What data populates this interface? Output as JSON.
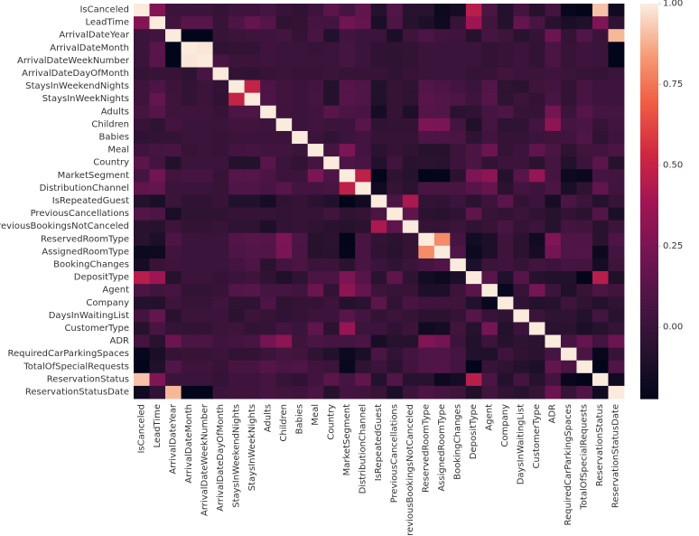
{
  "chart_data": {
    "type": "heatmap",
    "labels": [
      "IsCanceled",
      "LeadTime",
      "ArrivalDateYear",
      "ArrivalDateMonth",
      "ArrivalDateWeekNumber",
      "ArrivalDateDayOfMonth",
      "StaysInWeekendNights",
      "StaysInWeekNights",
      "Adults",
      "Children",
      "Babies",
      "Meal",
      "Country",
      "MarketSegment",
      "DistributionChannel",
      "IsRepeatedGuest",
      "PreviousCancellations",
      "PreviousBookingsNotCanceled",
      "ReservedRoomType",
      "AssignedRoomType",
      "BookingChanges",
      "DepositType",
      "Agent",
      "Company",
      "DaysInWaitingList",
      "CustomerType",
      "ADR",
      "RequiredCarParkingSpaces",
      "TotalOfSpecialRequests",
      "ReservationStatus",
      "ReservationStatusDate"
    ],
    "colorbar": {
      "vmin": -0.22,
      "vmax": 1.0,
      "ticks": [
        1.0,
        0.75,
        0.5,
        0.25,
        0.0
      ],
      "tick_labels": [
        "1.00",
        "0.75",
        "0.50",
        "0.25",
        "0.00"
      ]
    },
    "base_values": [
      [
        1.0,
        0.29,
        0.02,
        0.01,
        0.01,
        -0.01,
        0.03,
        0.03,
        0.06,
        0.0,
        -0.03,
        0.03,
        0.14,
        0.06,
        0.16,
        -0.08,
        0.11,
        -0.06,
        -0.06,
        -0.18,
        -0.14,
        0.46,
        0.08,
        -0.08,
        0.05,
        -0.07,
        0.05,
        -0.2,
        -0.23,
        0.92,
        -0.16
      ],
      [
        0.29,
        1.0,
        0.04,
        0.13,
        0.13,
        0.0,
        0.09,
        0.17,
        0.12,
        -0.04,
        -0.02,
        0.06,
        0.05,
        0.22,
        0.17,
        -0.12,
        0.09,
        -0.07,
        -0.11,
        -0.17,
        0.0,
        0.38,
        0.04,
        -0.08,
        0.17,
        0.07,
        -0.06,
        -0.12,
        -0.1,
        0.27,
        -0.03
      ],
      [
        0.02,
        0.04,
        1.0,
        -0.53,
        -0.54,
        0.0,
        0.02,
        0.03,
        0.03,
        0.05,
        -0.01,
        0.07,
        -0.09,
        0.04,
        0.02,
        0.01,
        -0.12,
        0.03,
        0.09,
        0.04,
        0.03,
        -0.07,
        0.06,
        0.03,
        -0.06,
        -0.01,
        0.2,
        -0.01,
        0.11,
        0.02,
        0.9
      ],
      [
        0.01,
        0.13,
        -0.53,
        1.0,
        0.99,
        -0.03,
        -0.02,
        -0.02,
        0.03,
        0.01,
        0.01,
        0.0,
        0.01,
        0.06,
        0.01,
        -0.03,
        -0.04,
        -0.02,
        0.02,
        0.01,
        0.01,
        0.01,
        -0.02,
        0.0,
        0.01,
        -0.02,
        0.08,
        0.0,
        0.03,
        0.01,
        -0.3
      ],
      [
        0.01,
        0.13,
        -0.54,
        0.99,
        1.0,
        0.07,
        0.02,
        0.02,
        0.03,
        0.01,
        0.01,
        0.01,
        0.01,
        0.06,
        0.01,
        -0.03,
        -0.04,
        -0.02,
        0.01,
        0.01,
        0.01,
        0.01,
        -0.02,
        0.0,
        0.02,
        -0.02,
        0.08,
        0.0,
        0.03,
        0.01,
        -0.3
      ],
      [
        -0.01,
        0.0,
        0.0,
        -0.03,
        0.07,
        1.0,
        -0.02,
        -0.03,
        0.0,
        0.01,
        0.0,
        0.0,
        0.01,
        0.0,
        0.0,
        0.0,
        -0.03,
        0.0,
        0.01,
        0.01,
        0.01,
        -0.01,
        0.0,
        0.04,
        0.02,
        0.01,
        0.03,
        0.01,
        0.0,
        -0.01,
        0.01
      ],
      [
        0.03,
        0.09,
        0.02,
        -0.02,
        0.02,
        -0.02,
        1.0,
        0.5,
        0.09,
        0.04,
        0.02,
        0.05,
        -0.08,
        0.12,
        0.1,
        -0.09,
        -0.01,
        -0.04,
        0.11,
        0.09,
        0.05,
        0.01,
        0.11,
        -0.04,
        -0.05,
        0.03,
        0.05,
        -0.02,
        0.07,
        0.03,
        0.03
      ],
      [
        0.03,
        0.17,
        0.03,
        -0.02,
        0.02,
        -0.03,
        0.5,
        1.0,
        0.09,
        0.04,
        0.02,
        0.06,
        -0.08,
        0.12,
        0.1,
        -0.09,
        -0.01,
        -0.04,
        0.13,
        0.11,
        0.09,
        0.03,
        0.12,
        -0.04,
        0.02,
        -0.02,
        0.07,
        -0.02,
        0.07,
        0.03,
        0.03
      ],
      [
        0.06,
        0.12,
        0.03,
        0.03,
        0.03,
        0.0,
        0.09,
        0.09,
        1.0,
        0.03,
        0.02,
        0.04,
        0.13,
        0.08,
        0.07,
        -0.14,
        -0.01,
        -0.11,
        0.12,
        0.11,
        -0.05,
        -0.03,
        0.06,
        0.09,
        0.0,
        -0.01,
        0.23,
        0.01,
        0.12,
        0.06,
        0.06
      ],
      [
        0.0,
        -0.04,
        0.05,
        0.01,
        0.01,
        0.01,
        0.04,
        0.04,
        0.03,
        1.0,
        0.02,
        0.04,
        0.01,
        0.02,
        0.13,
        -0.03,
        -0.02,
        -0.02,
        0.26,
        0.25,
        0.05,
        -0.1,
        0.06,
        -0.04,
        -0.03,
        0.05,
        0.32,
        0.06,
        0.08,
        0.0,
        0.04
      ],
      [
        -0.03,
        -0.02,
        -0.01,
        0.01,
        0.01,
        0.0,
        0.02,
        0.02,
        0.02,
        0.02,
        1.0,
        0.01,
        -0.02,
        0.01,
        0.05,
        -0.01,
        -0.01,
        -0.01,
        0.09,
        0.08,
        0.08,
        -0.03,
        0.04,
        -0.01,
        -0.01,
        0.01,
        0.03,
        0.04,
        0.1,
        -0.03,
        0.03
      ],
      [
        0.03,
        0.06,
        0.07,
        0.0,
        0.01,
        0.0,
        0.05,
        0.06,
        0.04,
        0.04,
        0.01,
        1.0,
        0.06,
        0.26,
        0.05,
        -0.05,
        -0.01,
        -0.03,
        -0.07,
        -0.07,
        0.02,
        0.08,
        0.2,
        -0.01,
        0.02,
        0.15,
        0.08,
        -0.04,
        0.04,
        0.04,
        0.08
      ],
      [
        0.14,
        0.05,
        -0.09,
        0.01,
        0.01,
        0.01,
        -0.08,
        -0.08,
        0.13,
        0.01,
        -0.02,
        0.06,
        1.0,
        0.09,
        0.07,
        -0.09,
        0.04,
        -0.06,
        -0.05,
        -0.06,
        0.02,
        0.08,
        -0.02,
        0.02,
        0.02,
        -0.05,
        0.06,
        -0.09,
        0.02,
        0.14,
        -0.07
      ],
      [
        0.06,
        0.22,
        0.04,
        0.06,
        0.06,
        0.0,
        0.12,
        0.12,
        0.08,
        0.02,
        0.01,
        0.26,
        0.09,
        1.0,
        0.48,
        -0.24,
        -0.04,
        -0.07,
        -0.22,
        -0.21,
        -0.05,
        0.26,
        0.32,
        -0.08,
        0.13,
        0.35,
        0.06,
        -0.18,
        -0.19,
        0.06,
        0.05
      ],
      [
        0.16,
        0.17,
        0.02,
        0.01,
        0.01,
        0.0,
        0.1,
        0.1,
        0.07,
        0.13,
        0.05,
        0.05,
        0.07,
        0.48,
        1.0,
        -0.16,
        -0.01,
        -0.05,
        0.07,
        0.07,
        0.07,
        0.12,
        0.18,
        -0.05,
        0.05,
        0.02,
        0.08,
        -0.12,
        -0.04,
        0.16,
        0.04
      ],
      [
        -0.08,
        -0.12,
        0.01,
        -0.03,
        -0.03,
        0.0,
        -0.09,
        -0.09,
        -0.14,
        -0.03,
        -0.01,
        -0.05,
        -0.09,
        -0.24,
        -0.16,
        1.0,
        0.08,
        0.42,
        -0.02,
        -0.03,
        0.01,
        -0.05,
        0.02,
        0.14,
        -0.02,
        0.02,
        -0.13,
        0.08,
        0.01,
        -0.08,
        0.0
      ],
      [
        0.11,
        0.09,
        -0.12,
        -0.04,
        -0.04,
        -0.03,
        -0.01,
        -0.01,
        -0.01,
        -0.02,
        -0.01,
        -0.01,
        0.04,
        -0.04,
        -0.01,
        0.08,
        1.0,
        0.15,
        -0.05,
        -0.06,
        -0.03,
        0.15,
        0.0,
        -0.02,
        0.01,
        -0.03,
        -0.07,
        -0.02,
        -0.05,
        0.11,
        -0.12
      ],
      [
        -0.06,
        -0.07,
        0.03,
        -0.02,
        -0.02,
        0.0,
        -0.04,
        -0.04,
        -0.11,
        -0.02,
        -0.01,
        -0.03,
        -0.06,
        -0.07,
        -0.05,
        0.42,
        0.15,
        1.0,
        -0.01,
        -0.01,
        0.01,
        -0.03,
        0.0,
        0.07,
        -0.01,
        0.02,
        -0.07,
        0.05,
        0.04,
        -0.06,
        0.02
      ],
      [
        -0.06,
        -0.11,
        0.09,
        0.02,
        0.01,
        0.01,
        0.11,
        0.13,
        0.12,
        0.26,
        0.09,
        -0.07,
        -0.05,
        -0.22,
        0.07,
        -0.02,
        -0.05,
        -0.01,
        1.0,
        0.81,
        0.06,
        -0.15,
        -0.11,
        0.03,
        -0.05,
        -0.16,
        0.27,
        0.1,
        0.1,
        -0.06,
        0.09
      ],
      [
        -0.18,
        -0.17,
        0.04,
        0.01,
        0.01,
        0.01,
        0.09,
        0.11,
        0.11,
        0.25,
        0.08,
        -0.07,
        -0.06,
        -0.21,
        0.07,
        -0.03,
        -0.06,
        -0.01,
        0.81,
        1.0,
        0.1,
        -0.18,
        -0.11,
        0.03,
        -0.05,
        -0.14,
        0.23,
        0.1,
        0.11,
        -0.18,
        0.05
      ],
      [
        -0.14,
        0.0,
        0.03,
        0.01,
        0.01,
        0.01,
        0.05,
        0.09,
        -0.05,
        0.05,
        0.08,
        0.02,
        0.02,
        -0.05,
        0.07,
        0.01,
        -0.03,
        0.01,
        0.06,
        0.1,
        1.0,
        -0.11,
        0.02,
        0.03,
        -0.01,
        0.04,
        0.02,
        0.06,
        0.05,
        -0.14,
        0.03
      ],
      [
        0.46,
        0.38,
        -0.07,
        0.01,
        0.01,
        -0.01,
        0.01,
        0.03,
        -0.03,
        -0.1,
        -0.03,
        0.08,
        0.08,
        0.26,
        0.12,
        -0.05,
        0.15,
        -0.03,
        -0.15,
        -0.18,
        -0.11,
        1.0,
        0.13,
        -0.09,
        0.12,
        -0.07,
        -0.09,
        -0.09,
        -0.27,
        0.46,
        -0.1
      ],
      [
        0.08,
        0.04,
        0.06,
        -0.02,
        -0.02,
        0.0,
        0.11,
        0.12,
        0.06,
        0.06,
        0.04,
        0.2,
        -0.02,
        0.32,
        0.18,
        0.02,
        0.0,
        0.0,
        -0.11,
        -0.11,
        0.02,
        0.13,
        1.0,
        -0.19,
        0.0,
        0.24,
        0.02,
        -0.1,
        0.0,
        0.08,
        0.04
      ],
      [
        -0.08,
        -0.08,
        0.03,
        0.0,
        0.0,
        0.04,
        -0.04,
        -0.04,
        0.09,
        -0.04,
        -0.01,
        -0.01,
        0.02,
        -0.08,
        -0.05,
        0.14,
        -0.02,
        0.07,
        0.03,
        0.03,
        0.03,
        -0.09,
        -0.19,
        1.0,
        -0.03,
        -0.08,
        -0.07,
        0.03,
        -0.04,
        -0.08,
        -0.03
      ],
      [
        0.05,
        0.17,
        -0.06,
        0.01,
        0.02,
        0.02,
        -0.05,
        0.02,
        0.0,
        -0.03,
        -0.01,
        0.02,
        0.02,
        0.13,
        0.05,
        -0.02,
        0.01,
        -0.01,
        -0.05,
        -0.05,
        -0.01,
        0.12,
        0.0,
        -0.03,
        1.0,
        0.02,
        -0.04,
        -0.03,
        -0.08,
        0.05,
        -0.06
      ],
      [
        -0.07,
        0.07,
        -0.01,
        -0.02,
        -0.02,
        0.01,
        0.03,
        -0.02,
        -0.01,
        0.05,
        0.01,
        0.15,
        -0.05,
        0.35,
        0.02,
        0.02,
        -0.03,
        0.02,
        -0.16,
        -0.14,
        0.04,
        -0.07,
        0.24,
        -0.08,
        0.02,
        1.0,
        -0.05,
        -0.05,
        -0.11,
        -0.07,
        -0.01
      ],
      [
        0.05,
        -0.06,
        0.2,
        0.08,
        0.08,
        0.03,
        0.05,
        0.07,
        0.23,
        0.32,
        0.03,
        0.08,
        0.06,
        0.06,
        0.08,
        -0.13,
        -0.07,
        -0.07,
        0.27,
        0.23,
        0.02,
        -0.09,
        0.02,
        -0.07,
        -0.04,
        -0.05,
        1.0,
        0.06,
        0.17,
        0.05,
        0.2
      ],
      [
        -0.2,
        -0.12,
        -0.01,
        0.0,
        0.0,
        0.01,
        -0.02,
        -0.02,
        0.01,
        0.06,
        0.04,
        -0.04,
        -0.09,
        -0.18,
        -0.12,
        0.08,
        -0.02,
        0.05,
        0.1,
        0.1,
        0.06,
        -0.09,
        -0.1,
        0.03,
        -0.03,
        -0.05,
        0.06,
        1.0,
        0.08,
        -0.2,
        0.0
      ],
      [
        -0.23,
        -0.1,
        0.11,
        0.03,
        0.03,
        0.0,
        0.07,
        0.07,
        0.12,
        0.08,
        0.1,
        0.04,
        0.02,
        -0.19,
        -0.04,
        0.01,
        -0.05,
        0.04,
        0.1,
        0.11,
        0.05,
        -0.27,
        0.0,
        -0.04,
        -0.08,
        -0.11,
        0.17,
        0.08,
        1.0,
        -0.23,
        0.1
      ],
      [
        0.92,
        0.27,
        0.02,
        0.01,
        0.01,
        -0.01,
        0.03,
        0.03,
        0.06,
        0.0,
        -0.03,
        0.04,
        0.14,
        0.06,
        0.16,
        -0.08,
        0.11,
        -0.06,
        -0.06,
        -0.18,
        -0.14,
        0.46,
        0.08,
        -0.08,
        0.05,
        -0.07,
        0.05,
        -0.2,
        -0.23,
        1.0,
        -0.16
      ],
      [
        -0.16,
        -0.03,
        0.9,
        -0.3,
        -0.3,
        0.01,
        0.03,
        0.03,
        0.06,
        0.04,
        0.03,
        0.08,
        -0.07,
        0.05,
        0.04,
        0.0,
        -0.12,
        0.02,
        0.09,
        0.05,
        0.03,
        -0.1,
        0.04,
        -0.03,
        -0.06,
        -0.01,
        0.2,
        0.0,
        0.1,
        -0.16,
        1.0
      ]
    ]
  }
}
